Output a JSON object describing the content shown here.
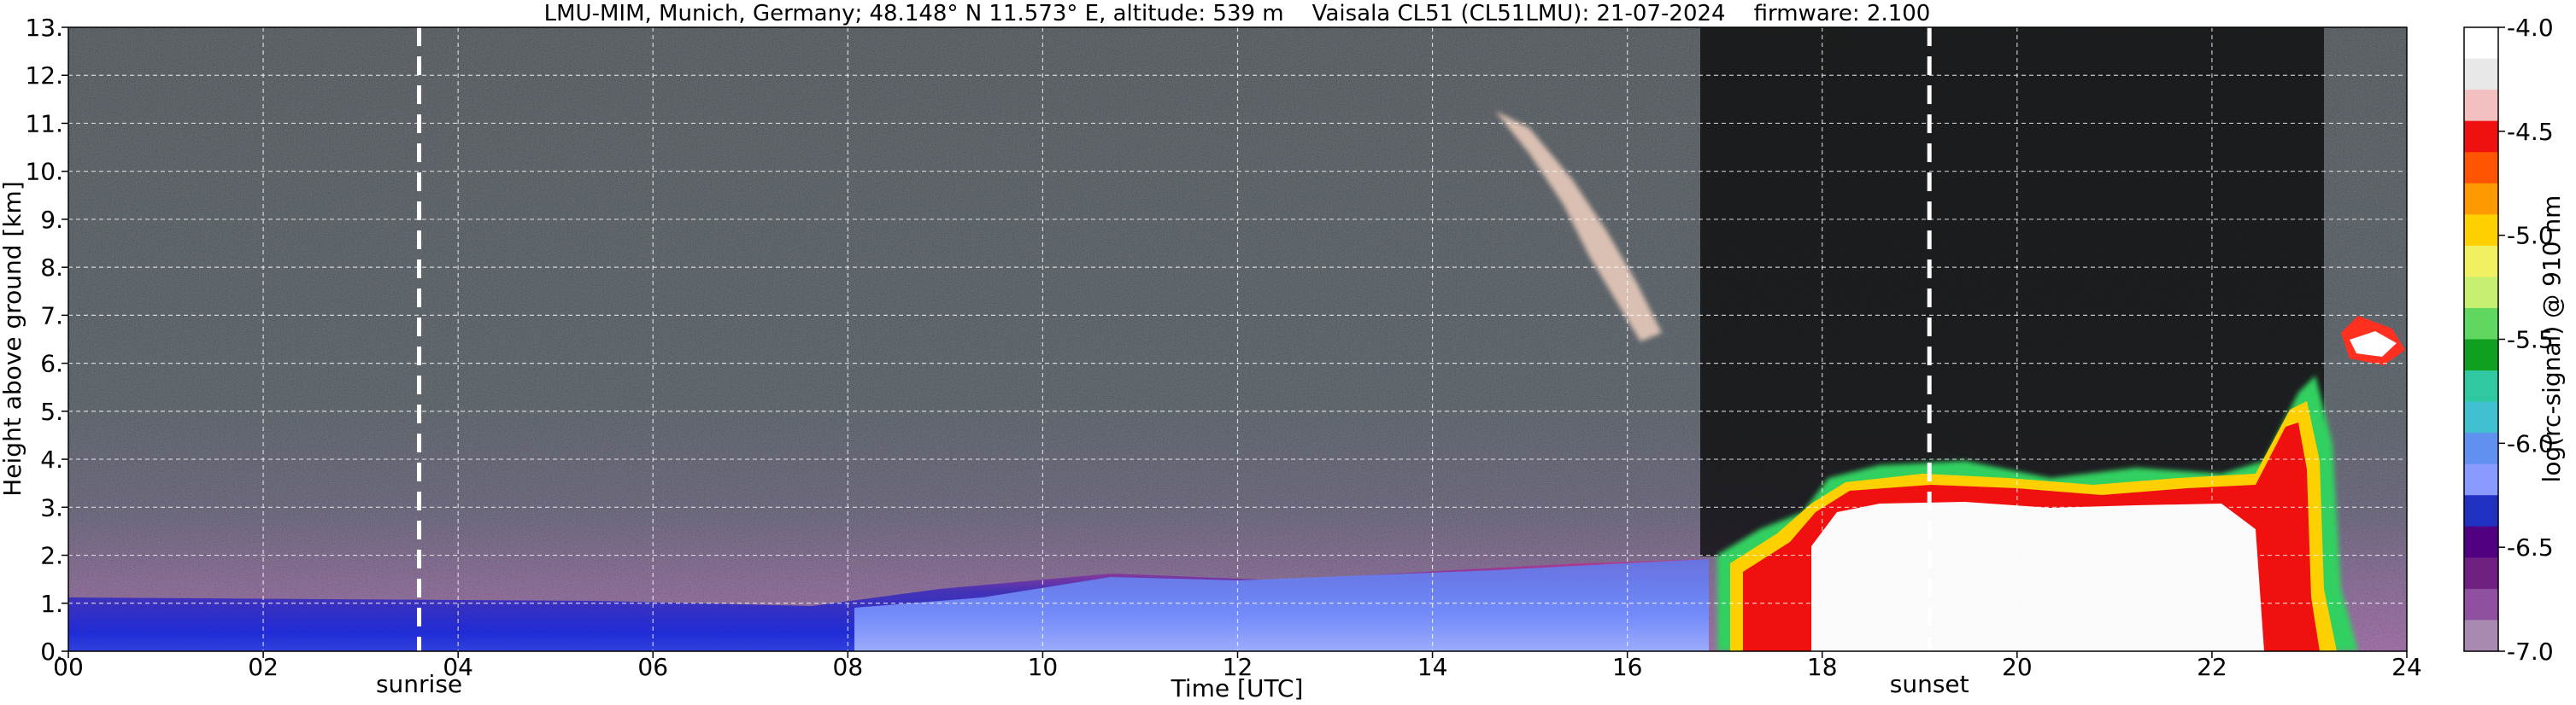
{
  "chart_data": {
    "type": "heatmap",
    "title": "LMU-MIM, Munich, Germany; 48.148° N 11.573° E, altitude: 539 m    Vaisala CL51 (CL51LMU): 21-07-2024    firmware: 2.100",
    "xlabel": "Time [UTC]",
    "ylabel": "Height above ground [km]",
    "xlim": [
      0,
      24
    ],
    "ylim": [
      0,
      13
    ],
    "x_ticks": [
      0,
      2,
      4,
      6,
      8,
      10,
      12,
      14,
      16,
      18,
      20,
      22,
      24
    ],
    "x_tick_labels": [
      "00",
      "02",
      "04",
      "06",
      "08",
      "10",
      "12",
      "14",
      "16",
      "18",
      "20",
      "22",
      "24"
    ],
    "y_ticks": [
      0,
      1,
      2,
      3,
      4,
      5,
      6,
      7,
      8,
      9,
      10,
      11,
      12,
      13
    ],
    "y_tick_labels": [
      "0.",
      "1.",
      "2.",
      "3.",
      "4.",
      "5.",
      "6.",
      "7.",
      "8.",
      "9.",
      "10.",
      "11.",
      "12.",
      "13."
    ],
    "grid": true,
    "markers": [
      {
        "label": "sunrise",
        "x": 3.6
      },
      {
        "label": "sunset",
        "x": 19.1
      }
    ],
    "colorbar": {
      "label": "log(rc-signal) @ 910 nm",
      "range": [
        -7.0,
        -4.0
      ],
      "ticks": [
        -4.0,
        -4.5,
        -5.0,
        -5.5,
        -6.0,
        -6.5,
        -7.0
      ],
      "tick_labels": [
        "-4.0",
        "-4.5",
        "-5.0",
        "-5.5",
        "-6.0",
        "-6.5",
        "-7.0"
      ],
      "colors": [
        "#ffffff",
        "#e8e8e8",
        "#f2c0c0",
        "#f01010",
        "#ff5500",
        "#ff9900",
        "#ffd000",
        "#f0f060",
        "#c8f070",
        "#60d860",
        "#10a020",
        "#30c8a0",
        "#40c0d0",
        "#6090f0",
        "#8899ff",
        "#2030c0",
        "#500080",
        "#702080",
        "#9050a0",
        "#a88ab0"
      ]
    },
    "features": [
      {
        "type": "boundary layer",
        "x": [
          0,
          16.8
        ],
        "y_top": [
          1.1,
          1.8
        ]
      },
      {
        "type": "low cloud / dense aerosol",
        "x": [
          16.8,
          23.5
        ],
        "y": [
          0,
          3.8
        ]
      },
      {
        "type": "cirrus streak",
        "x": [
          14.6,
          16.3
        ],
        "y": [
          6.5,
          11.3
        ]
      },
      {
        "type": "elevated cloud",
        "x": [
          23.0,
          24.0
        ],
        "y": [
          6.0,
          7.0
        ]
      }
    ]
  }
}
